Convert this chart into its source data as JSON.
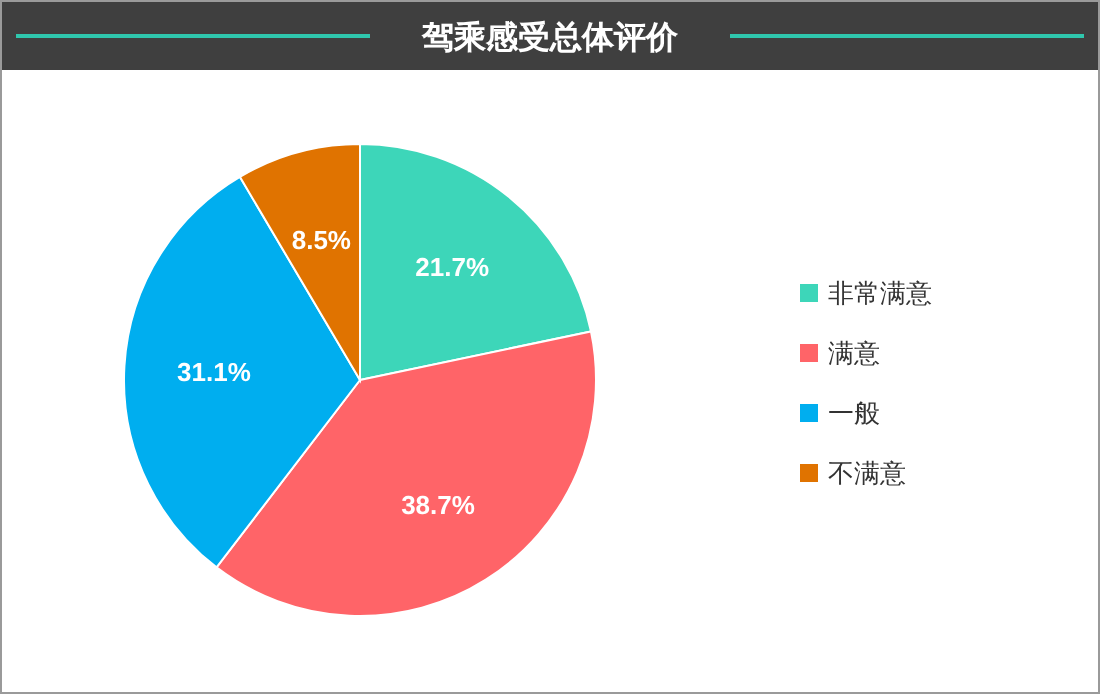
{
  "chart_data": {
    "type": "pie",
    "title": "驾乘感受总体评价",
    "categories": [
      "非常满意",
      "满意",
      "一般",
      "不满意"
    ],
    "values": [
      21.7,
      38.7,
      31.1,
      8.5
    ],
    "colors": [
      "#3dd6b9",
      "#ff6468",
      "#00aeef",
      "#e07300"
    ],
    "value_labels": [
      "21.7%",
      "38.7%",
      "31.1%",
      "8.5%"
    ],
    "legend": "right"
  }
}
